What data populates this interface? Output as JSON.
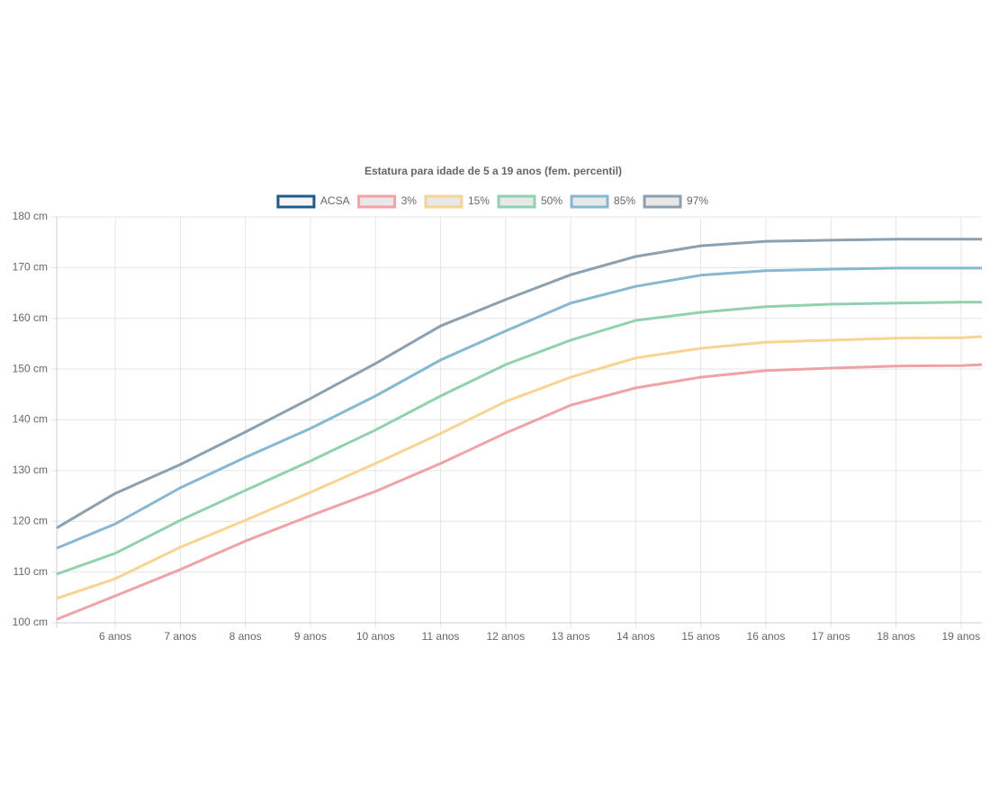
{
  "chart_data": {
    "type": "line",
    "title": "Estatura para idade de 5 a 19 anos (fem. percentil)",
    "x": [
      5.1,
      6,
      7,
      8,
      9,
      10,
      11,
      12,
      13,
      14,
      15,
      16,
      17,
      18,
      19,
      19.32
    ],
    "series": [
      {
        "name": "ACSA",
        "color": "#1f5b87",
        "values": [
          null,
          null,
          null,
          null,
          null,
          null,
          null,
          null,
          null,
          null,
          null,
          null,
          null,
          null,
          null,
          null
        ]
      },
      {
        "name": "3%",
        "color": "#f0a3a6",
        "values": [
          100.7,
          105.3,
          110.5,
          116.1,
          121.1,
          125.9,
          131.4,
          137.4,
          142.9,
          146.3,
          148.4,
          149.7,
          150.2,
          150.6,
          150.7,
          150.9
        ]
      },
      {
        "name": "15%",
        "color": "#f7d491",
        "values": [
          104.8,
          108.7,
          114.9,
          120.2,
          125.7,
          131.4,
          137.3,
          143.6,
          148.4,
          152.2,
          154.1,
          155.3,
          155.7,
          156.1,
          156.2,
          156.4
        ]
      },
      {
        "name": "50%",
        "color": "#92d1ae",
        "values": [
          109.6,
          113.7,
          120.2,
          126.1,
          131.9,
          138.0,
          144.7,
          150.9,
          155.7,
          159.6,
          161.2,
          162.3,
          162.8,
          163.0,
          163.2,
          163.2
        ]
      },
      {
        "name": "85%",
        "color": "#86b8d2",
        "values": [
          114.7,
          119.5,
          126.6,
          132.6,
          138.3,
          144.7,
          151.8,
          157.5,
          163.0,
          166.3,
          168.5,
          169.4,
          169.7,
          169.9,
          169.9,
          169.9
        ]
      },
      {
        "name": "97%",
        "color": "#8ca0b0",
        "values": [
          118.7,
          125.5,
          131.2,
          137.6,
          144.2,
          151.1,
          158.5,
          163.7,
          168.6,
          172.2,
          174.3,
          175.2,
          175.4,
          175.6,
          175.6,
          175.6
        ]
      }
    ],
    "xlim": [
      5.1,
      19.32
    ],
    "xticks": [
      {
        "value": 6,
        "label": "6 anos"
      },
      {
        "value": 7,
        "label": "7 anos"
      },
      {
        "value": 8,
        "label": "8 anos"
      },
      {
        "value": 9,
        "label": "9 anos"
      },
      {
        "value": 10,
        "label": "10 anos"
      },
      {
        "value": 11,
        "label": "11 anos"
      },
      {
        "value": 12,
        "label": "12 anos"
      },
      {
        "value": 13,
        "label": "13 anos"
      },
      {
        "value": 14,
        "label": "14 anos"
      },
      {
        "value": 15,
        "label": "15 anos"
      },
      {
        "value": 16,
        "label": "16 anos"
      },
      {
        "value": 17,
        "label": "17 anos"
      },
      {
        "value": 18,
        "label": "18 anos"
      },
      {
        "value": 19,
        "label": "19 anos"
      }
    ],
    "ylim": [
      100,
      180
    ],
    "yticks": [
      {
        "value": 100,
        "label": "100 cm"
      },
      {
        "value": 110,
        "label": "110 cm"
      },
      {
        "value": 120,
        "label": "120 cm"
      },
      {
        "value": 130,
        "label": "130 cm"
      },
      {
        "value": 140,
        "label": "140 cm"
      },
      {
        "value": 150,
        "label": "150 cm"
      },
      {
        "value": 160,
        "label": "160 cm"
      },
      {
        "value": 170,
        "label": "170 cm"
      },
      {
        "value": 180,
        "label": "180 cm"
      }
    ],
    "grid": true
  }
}
